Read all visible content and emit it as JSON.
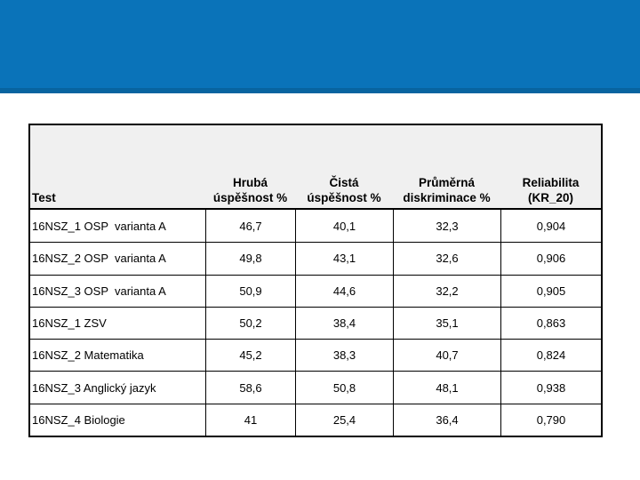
{
  "slide": {
    "band_color": "#0a73b9",
    "band_edge_color": "#0864a0",
    "background_color": "#ffffff"
  },
  "table": {
    "header_bg": "#f0f0f0",
    "border_color": "#000000",
    "header": {
      "test_label": "Test",
      "columns": [
        {
          "line1": "Hrubá",
          "line2": "úspěšnost %"
        },
        {
          "line1": "Čistá",
          "line2": "úspěšnost %"
        },
        {
          "line1": "Průměrná",
          "line2": "diskriminace %"
        },
        {
          "line1": "Reliabilita",
          "line2": "(KR_20)"
        }
      ]
    },
    "rows": [
      {
        "test": "16NSZ_1 OSP  varianta A",
        "hruba": "46,7",
        "cista": "40,1",
        "diskriminace": "32,3",
        "reliabilita": "0,904"
      },
      {
        "test": "16NSZ_2 OSP  varianta A",
        "hruba": "49,8",
        "cista": "43,1",
        "diskriminace": "32,6",
        "reliabilita": "0,906"
      },
      {
        "test": "16NSZ_3 OSP  varianta A",
        "hruba": "50,9",
        "cista": "44,6",
        "diskriminace": "32,2",
        "reliabilita": "0,905"
      },
      {
        "test": "16NSZ_1 ZSV",
        "hruba": "50,2",
        "cista": "38,4",
        "diskriminace": "35,1",
        "reliabilita": "0,863"
      },
      {
        "test": "16NSZ_2 Matematika",
        "hruba": "45,2",
        "cista": "38,3",
        "diskriminace": "40,7",
        "reliabilita": "0,824"
      },
      {
        "test": "16NSZ_3 Anglický jazyk",
        "hruba": "58,6",
        "cista": "50,8",
        "diskriminace": "48,1",
        "reliabilita": "0,938"
      },
      {
        "test": "16NSZ_4 Biologie",
        "hruba": "41",
        "cista": "25,4",
        "diskriminace": "36,4",
        "reliabilita": "0,790"
      }
    ]
  }
}
